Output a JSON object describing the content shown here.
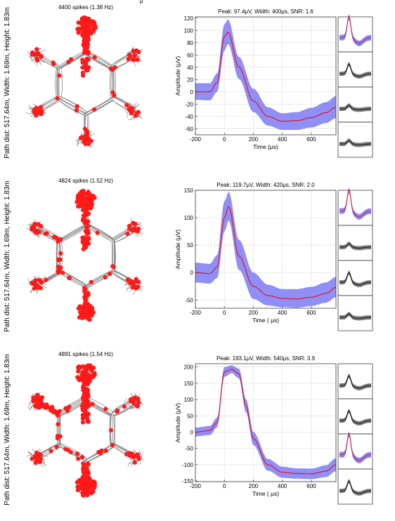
{
  "stray_glyph": "μ",
  "chart_data": [
    {
      "type": "line",
      "row_index": 0,
      "trajectory_title": "4400 spikes (1.38 Hz)",
      "side_label": "Path dist: 517.64m, Width: 1.69m, Height: 1.83m",
      "title": "Peak: 97.4μV, Width: 400μs, SNR: 1.6",
      "xlabel": "Time (μs)",
      "ylabel": "Amplitude (μV)",
      "xlim": [
        -200,
        770
      ],
      "ylim": [
        -70,
        122
      ],
      "xticks": [
        -200,
        0,
        200,
        400,
        600
      ],
      "yticks": [
        -60,
        -40,
        -20,
        0,
        20,
        40,
        60,
        80,
        100,
        120
      ],
      "grid": true,
      "series": [
        {
          "x": [
            -200,
            -100,
            -50,
            0,
            25,
            100,
            200,
            300,
            400,
            500,
            600,
            700,
            770
          ],
          "y": [
            0,
            0,
            15,
            90,
            97,
            40,
            -15,
            -40,
            -48,
            -47,
            -42,
            -34,
            -25
          ]
        }
      ],
      "band": {
        "x": [
          -200,
          -100,
          -50,
          0,
          25,
          100,
          200,
          300,
          400,
          500,
          600,
          700,
          770
        ],
        "upper": [
          14,
          14,
          30,
          110,
          118,
          57,
          5,
          -25,
          -35,
          -33,
          -26,
          -17,
          -7
        ],
        "lower": [
          -13,
          -14,
          0,
          67,
          78,
          21,
          -33,
          -55,
          -62,
          -62,
          -58,
          -51,
          -43
        ]
      },
      "channels": [
        {
          "highlight": true,
          "shape": "spike"
        },
        {
          "highlight": false,
          "shape": "bump"
        },
        {
          "highlight": false,
          "shape": "small"
        },
        {
          "highlight": false,
          "shape": "small"
        }
      ]
    },
    {
      "type": "line",
      "row_index": 1,
      "trajectory_title": "4824 spikes (1.52 Hz)",
      "side_label": "Path dist: 517.64m, Width: 1.69m, Height: 1.83m",
      "title": "Peak: 119.7μV, Width: 420μs, SNR: 2.0",
      "xlabel": "Time ( μs)",
      "ylabel": "Amplitude (μV)",
      "xlim": [
        -200,
        770
      ],
      "ylim": [
        -65,
        150
      ],
      "xticks": [
        -200,
        0,
        200,
        400,
        600
      ],
      "yticks": [
        -50,
        0,
        50,
        100,
        150
      ],
      "grid": true,
      "series": [
        {
          "x": [
            -200,
            -100,
            -50,
            0,
            30,
            100,
            200,
            300,
            400,
            500,
            600,
            700,
            770
          ],
          "y": [
            0,
            -2,
            10,
            100,
            120,
            30,
            -25,
            -42,
            -47,
            -48,
            -45,
            -38,
            -27
          ]
        }
      ],
      "band": {
        "x": [
          -200,
          -100,
          -50,
          0,
          30,
          100,
          200,
          300,
          400,
          500,
          600,
          700,
          770
        ],
        "upper": [
          18,
          16,
          32,
          130,
          147,
          60,
          0,
          -22,
          -30,
          -30,
          -26,
          -18,
          -8
        ],
        "lower": [
          -18,
          -20,
          -10,
          75,
          95,
          5,
          -48,
          -60,
          -63,
          -64,
          -61,
          -55,
          -45
        ]
      },
      "channels": [
        {
          "highlight": true,
          "shape": "spike"
        },
        {
          "highlight": false,
          "shape": "small"
        },
        {
          "highlight": false,
          "shape": "bump"
        },
        {
          "highlight": false,
          "shape": "small"
        }
      ]
    },
    {
      "type": "line",
      "row_index": 2,
      "trajectory_title": "4891 spikes (1.54 Hz)",
      "side_label": "Path dist: 517.64m, Width: 1.69m, Height: 1.83m",
      "title": "Peak: 193.1μV, Width: 540μs, SNR: 3.9",
      "xlabel": "Time ( μs)",
      "ylabel": "Amplitude (μV)",
      "xlim": [
        -200,
        770
      ],
      "ylim": [
        -152,
        210
      ],
      "xticks": [
        -200,
        0,
        200,
        400,
        600
      ],
      "yticks": [
        -150,
        -100,
        -50,
        0,
        50,
        100,
        150,
        200
      ],
      "grid": true,
      "series": [
        {
          "x": [
            -200,
            -100,
            -50,
            0,
            50,
            100,
            150,
            200,
            300,
            400,
            500,
            600,
            700,
            770
          ],
          "y": [
            0,
            5,
            30,
            185,
            193,
            180,
            80,
            -20,
            -100,
            -123,
            -127,
            -128,
            -120,
            -100
          ]
        }
      ],
      "band": {
        "x": [
          -200,
          -100,
          -50,
          0,
          50,
          100,
          150,
          200,
          300,
          400,
          500,
          600,
          700,
          770
        ],
        "upper": [
          14,
          19,
          45,
          200,
          205,
          195,
          100,
          0,
          -82,
          -106,
          -111,
          -112,
          -102,
          -80
        ],
        "lower": [
          -13,
          -9,
          15,
          170,
          181,
          165,
          60,
          -40,
          -118,
          -140,
          -143,
          -144,
          -138,
          -120
        ]
      },
      "channels": [
        {
          "highlight": false,
          "shape": "bump"
        },
        {
          "highlight": false,
          "shape": "bump"
        },
        {
          "highlight": true,
          "shape": "spike"
        },
        {
          "highlight": false,
          "shape": "bump"
        }
      ]
    }
  ]
}
